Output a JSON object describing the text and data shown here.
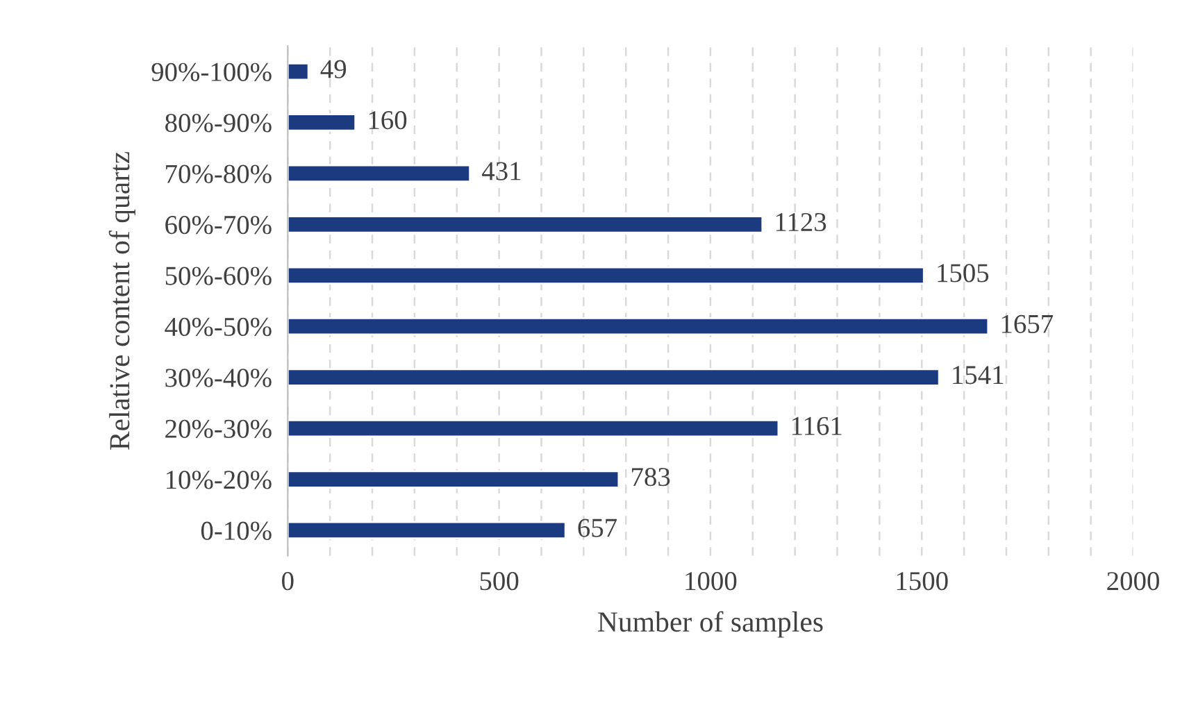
{
  "chart_data": {
    "type": "bar",
    "orientation": "horizontal",
    "xlabel": "Number of samples",
    "ylabel": "Relative content of quartz",
    "categories": [
      "90%-100%",
      "80%-90%",
      "70%-80%",
      "60%-70%",
      "50%-60%",
      "40%-50%",
      "30%-40%",
      "20%-30%",
      "10%-20%",
      "0-10%"
    ],
    "values": [
      49,
      160,
      431,
      1123,
      1505,
      1657,
      1541,
      1161,
      783,
      657
    ],
    "color": "#1b3a80",
    "data_labels": true,
    "grid": "x",
    "legend": false,
    "xlim": [
      0,
      2000
    ],
    "xticks": [
      0,
      {
        "value": 100,
        "label": null
      },
      {
        "value": 200,
        "label": null
      },
      {
        "value": 300,
        "label": null
      },
      {
        "value": 400,
        "label": null
      },
      500,
      {
        "value": 600,
        "label": null
      },
      {
        "value": 700,
        "label": null
      },
      {
        "value": 800,
        "label": null
      },
      {
        "value": 900,
        "label": null
      },
      1000,
      {
        "value": 1100,
        "label": null
      },
      {
        "value": 1200,
        "label": null
      },
      {
        "value": 1300,
        "label": null
      },
      {
        "value": 1400,
        "label": null
      },
      1500,
      {
        "value": 1600,
        "label": null
      },
      {
        "value": 1700,
        "label": null
      },
      {
        "value": 1800,
        "label": null
      },
      {
        "value": 1900,
        "label": null
      },
      2000
    ]
  }
}
